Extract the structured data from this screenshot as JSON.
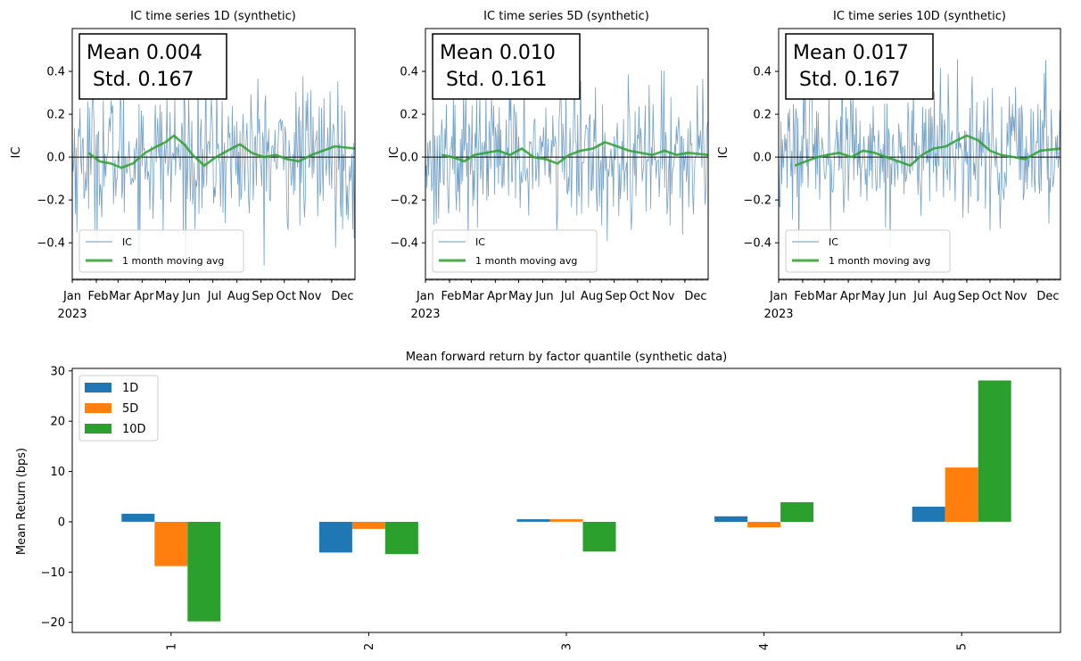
{
  "chart_data": [
    {
      "type": "line",
      "title": "IC time series 1D (synthetic)",
      "ylabel": "IC",
      "xlabel": "",
      "ylim": [
        -0.57,
        0.6
      ],
      "yticks": [
        -0.4,
        -0.2,
        0.0,
        0.2,
        0.4
      ],
      "ytick_labels": [
        "−0.4",
        "−0.2",
        "0.0",
        "0.2",
        "0.4"
      ],
      "xtick_labels": [
        "Jan",
        "Feb",
        "Mar",
        "Apr",
        "May",
        "Jun",
        "Jul",
        "Aug",
        "Sep",
        "Oct",
        "Nov",
        "Dec"
      ],
      "year_label": "2023",
      "stats": {
        "mean_label": "Mean 0.004",
        "std_label": "Std. 0.167"
      },
      "legend": {
        "placement": "lower-left",
        "entries": [
          "IC",
          "1 month moving avg"
        ]
      },
      "colors": {
        "ic": "#4682b4",
        "moving_avg": "#2ca02c"
      },
      "n_days": 365,
      "mean": 0.004,
      "std": 0.167,
      "moving_avg": [
        {
          "x": "2023-01-22",
          "y": 0.02
        },
        {
          "x": "2023-02-05",
          "y": -0.02
        },
        {
          "x": "2023-02-20",
          "y": -0.03
        },
        {
          "x": "2023-03-05",
          "y": -0.05
        },
        {
          "x": "2023-03-20",
          "y": -0.03
        },
        {
          "x": "2023-04-05",
          "y": 0.02
        },
        {
          "x": "2023-04-20",
          "y": 0.05
        },
        {
          "x": "2023-05-01",
          "y": 0.07
        },
        {
          "x": "2023-05-12",
          "y": 0.1
        },
        {
          "x": "2023-05-25",
          "y": 0.06
        },
        {
          "x": "2023-06-05",
          "y": 0.01
        },
        {
          "x": "2023-06-20",
          "y": -0.04
        },
        {
          "x": "2023-07-05",
          "y": 0.0
        },
        {
          "x": "2023-07-20",
          "y": 0.03
        },
        {
          "x": "2023-08-05",
          "y": 0.06
        },
        {
          "x": "2023-08-20",
          "y": 0.02
        },
        {
          "x": "2023-09-05",
          "y": 0.0
        },
        {
          "x": "2023-09-20",
          "y": 0.01
        },
        {
          "x": "2023-10-05",
          "y": -0.01
        },
        {
          "x": "2023-10-20",
          "y": -0.02
        },
        {
          "x": "2023-11-05",
          "y": 0.01
        },
        {
          "x": "2023-11-20",
          "y": 0.03
        },
        {
          "x": "2023-12-05",
          "y": 0.05
        },
        {
          "x": "2023-12-31",
          "y": 0.04
        }
      ]
    },
    {
      "type": "line",
      "title": "IC time series 5D (synthetic)",
      "ylabel": "IC",
      "xlabel": "",
      "ylim": [
        -0.57,
        0.6
      ],
      "yticks": [
        -0.4,
        -0.2,
        0.0,
        0.2,
        0.4
      ],
      "ytick_labels": [
        "−0.4",
        "−0.2",
        "0.0",
        "0.2",
        "0.4"
      ],
      "xtick_labels": [
        "Jan",
        "Feb",
        "Mar",
        "Apr",
        "May",
        "Jun",
        "Jul",
        "Aug",
        "Sep",
        "Oct",
        "Nov",
        "Dec"
      ],
      "year_label": "2023",
      "stats": {
        "mean_label": "Mean 0.010",
        "std_label": "Std. 0.161"
      },
      "legend": {
        "placement": "lower-left",
        "entries": [
          "IC",
          "1 month moving avg"
        ]
      },
      "colors": {
        "ic": "#4682b4",
        "moving_avg": "#2ca02c"
      },
      "n_days": 365,
      "mean": 0.01,
      "std": 0.161,
      "moving_avg": [
        {
          "x": "2023-01-22",
          "y": 0.01
        },
        {
          "x": "2023-02-05",
          "y": 0.0
        },
        {
          "x": "2023-02-20",
          "y": -0.02
        },
        {
          "x": "2023-03-05",
          "y": 0.01
        },
        {
          "x": "2023-03-20",
          "y": 0.02
        },
        {
          "x": "2023-04-05",
          "y": 0.03
        },
        {
          "x": "2023-04-20",
          "y": 0.01
        },
        {
          "x": "2023-05-05",
          "y": 0.04
        },
        {
          "x": "2023-05-20",
          "y": 0.0
        },
        {
          "x": "2023-06-05",
          "y": -0.01
        },
        {
          "x": "2023-06-20",
          "y": -0.03
        },
        {
          "x": "2023-07-05",
          "y": 0.01
        },
        {
          "x": "2023-07-20",
          "y": 0.03
        },
        {
          "x": "2023-08-05",
          "y": 0.04
        },
        {
          "x": "2023-08-20",
          "y": 0.07
        },
        {
          "x": "2023-09-05",
          "y": 0.05
        },
        {
          "x": "2023-09-20",
          "y": 0.03
        },
        {
          "x": "2023-10-05",
          "y": 0.02
        },
        {
          "x": "2023-10-20",
          "y": 0.01
        },
        {
          "x": "2023-11-05",
          "y": 0.03
        },
        {
          "x": "2023-11-20",
          "y": 0.01
        },
        {
          "x": "2023-12-05",
          "y": 0.02
        },
        {
          "x": "2023-12-31",
          "y": 0.01
        }
      ]
    },
    {
      "type": "line",
      "title": "IC time series 10D (synthetic)",
      "ylabel": "IC",
      "xlabel": "",
      "ylim": [
        -0.57,
        0.6
      ],
      "yticks": [
        -0.4,
        -0.2,
        0.0,
        0.2,
        0.4
      ],
      "ytick_labels": [
        "−0.4",
        "−0.2",
        "0.0",
        "0.2",
        "0.4"
      ],
      "xtick_labels": [
        "Jan",
        "Feb",
        "Mar",
        "Apr",
        "May",
        "Jun",
        "Jul",
        "Aug",
        "Sep",
        "Oct",
        "Nov",
        "Dec"
      ],
      "year_label": "2023",
      "stats": {
        "mean_label": "Mean 0.017",
        "std_label": "Std. 0.167"
      },
      "legend": {
        "placement": "lower-left",
        "entries": [
          "IC",
          "1 month moving avg"
        ]
      },
      "colors": {
        "ic": "#4682b4",
        "moving_avg": "#2ca02c"
      },
      "n_days": 365,
      "mean": 0.017,
      "std": 0.167,
      "moving_avg": [
        {
          "x": "2023-01-22",
          "y": -0.04
        },
        {
          "x": "2023-02-05",
          "y": -0.02
        },
        {
          "x": "2023-02-20",
          "y": 0.0
        },
        {
          "x": "2023-03-05",
          "y": 0.01
        },
        {
          "x": "2023-03-20",
          "y": 0.02
        },
        {
          "x": "2023-04-05",
          "y": 0.0
        },
        {
          "x": "2023-04-20",
          "y": 0.03
        },
        {
          "x": "2023-05-05",
          "y": 0.02
        },
        {
          "x": "2023-05-20",
          "y": 0.0
        },
        {
          "x": "2023-06-05",
          "y": -0.02
        },
        {
          "x": "2023-06-20",
          "y": -0.04
        },
        {
          "x": "2023-07-05",
          "y": 0.01
        },
        {
          "x": "2023-07-20",
          "y": 0.04
        },
        {
          "x": "2023-08-05",
          "y": 0.05
        },
        {
          "x": "2023-08-20",
          "y": 0.08
        },
        {
          "x": "2023-09-01",
          "y": 0.1
        },
        {
          "x": "2023-09-15",
          "y": 0.08
        },
        {
          "x": "2023-10-01",
          "y": 0.03
        },
        {
          "x": "2023-10-15",
          "y": 0.01
        },
        {
          "x": "2023-11-01",
          "y": 0.0
        },
        {
          "x": "2023-11-15",
          "y": -0.01
        },
        {
          "x": "2023-12-05",
          "y": 0.03
        },
        {
          "x": "2023-12-31",
          "y": 0.04
        }
      ]
    },
    {
      "type": "bar",
      "title": "Mean forward return by factor quantile (synthetic data)",
      "xlabel": "",
      "ylabel": "Mean Return (bps)",
      "categories": [
        "1",
        "2",
        "3",
        "4",
        "5"
      ],
      "ylim": [
        -22,
        30.5
      ],
      "yticks": [
        -20,
        -10,
        0,
        10,
        20,
        30
      ],
      "ytick_labels": [
        "−20",
        "−10",
        "0",
        "10",
        "20",
        "30"
      ],
      "legend": {
        "placement": "top-left"
      },
      "series": [
        {
          "name": "1D",
          "color": "#1f77b4",
          "values": [
            1.6,
            -6.1,
            0.5,
            1.1,
            3.0
          ]
        },
        {
          "name": "5D",
          "color": "#ff7f0e",
          "values": [
            -8.8,
            -1.4,
            0.5,
            -1.1,
            10.8
          ]
        },
        {
          "name": "10D",
          "color": "#2ca02c",
          "values": [
            -19.8,
            -6.4,
            -5.9,
            3.9,
            28.1
          ]
        }
      ]
    }
  ]
}
